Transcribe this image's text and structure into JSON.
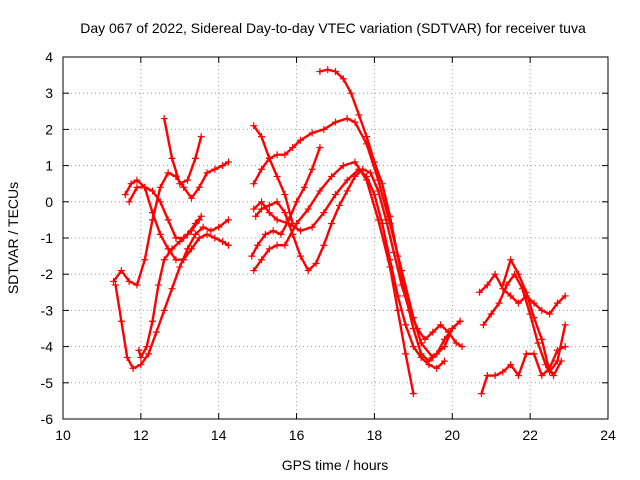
{
  "chart_data": {
    "type": "scatter",
    "title": "Day 067 of 2022, Sidereal Day-to-day VTEC variation (SDTVAR) for receiver tuva",
    "xlabel": "GPS time / hours",
    "ylabel": "SDTVAR / TECUs",
    "xlim": [
      10,
      24
    ],
    "ylim": [
      -6,
      4
    ],
    "xticks": [
      10,
      12,
      14,
      16,
      18,
      20,
      22,
      24
    ],
    "yticks": [
      -6,
      -5,
      -4,
      -3,
      -2,
      -1,
      0,
      1,
      2,
      3,
      4
    ],
    "grid": true,
    "marker": "+",
    "color": "#ff0000",
    "series": [
      {
        "name": "s1",
        "x": [
          11.3,
          11.5,
          11.7,
          11.9,
          12.1,
          12.3,
          12.5,
          12.7,
          12.9,
          13.1,
          13.3,
          13.5,
          13.7,
          13.9,
          14.1,
          14.25
        ],
        "y": [
          -2.2,
          -1.9,
          -2.2,
          -2.3,
          -1.6,
          -0.5,
          0.4,
          0.8,
          0.7,
          0.4,
          0.1,
          0.4,
          0.8,
          0.9,
          1.0,
          1.1
        ]
      },
      {
        "name": "s2",
        "x": [
          11.35,
          11.5,
          11.65,
          11.8,
          12.0,
          12.2,
          12.4,
          12.6,
          12.8,
          13.0,
          13.2,
          13.4,
          13.6,
          13.8,
          14.0,
          14.25
        ],
        "y": [
          -2.3,
          -3.3,
          -4.3,
          -4.6,
          -4.5,
          -4.2,
          -3.6,
          -3.0,
          -2.4,
          -1.8,
          -1.3,
          -0.9,
          -0.7,
          -0.8,
          -0.7,
          -0.5
        ]
      },
      {
        "name": "s3",
        "x": [
          11.95,
          12.0,
          12.15,
          12.3,
          12.45,
          12.6,
          12.8,
          13.0,
          13.2,
          13.4,
          13.55
        ],
        "y": [
          -4.1,
          -4.3,
          -4.0,
          -3.3,
          -2.3,
          -1.6,
          -1.3,
          -1.1,
          -0.9,
          -0.6,
          -0.4
        ]
      },
      {
        "name": "s4",
        "x": [
          11.6,
          11.75,
          11.9,
          12.1,
          12.3,
          12.5,
          12.7,
          12.9,
          13.1,
          13.3,
          13.5,
          13.7,
          13.9,
          14.1,
          14.25
        ],
        "y": [
          0.2,
          0.5,
          0.6,
          0.4,
          -0.3,
          -0.9,
          -1.3,
          -1.6,
          -1.6,
          -1.3,
          -1.0,
          -0.9,
          -1.0,
          -1.1,
          -1.2
        ]
      },
      {
        "name": "s5",
        "x": [
          11.7,
          11.9,
          12.1,
          12.3,
          12.5,
          12.7,
          12.9,
          13.1,
          13.3,
          13.5
        ],
        "y": [
          0.0,
          0.4,
          0.4,
          0.3,
          0.0,
          -0.5,
          -1.0,
          -1.0,
          -0.8,
          -0.5
        ]
      },
      {
        "name": "s6",
        "x": [
          12.6,
          12.8,
          13.0,
          13.2,
          13.4,
          13.55
        ],
        "y": [
          2.3,
          1.2,
          0.5,
          0.6,
          1.2,
          1.8
        ]
      },
      {
        "name": "s7",
        "x": [
          14.85,
          15.0,
          15.2,
          15.4,
          15.6,
          15.8,
          16.0,
          16.2,
          16.4,
          16.6
        ],
        "y": [
          -1.5,
          -1.2,
          -0.9,
          -0.8,
          -0.9,
          -0.5,
          0.0,
          0.4,
          0.9,
          1.5
        ]
      },
      {
        "name": "s8",
        "x": [
          14.9,
          15.1,
          15.3,
          15.5,
          15.7,
          15.9,
          16.1,
          16.4,
          16.7,
          17.0,
          17.3,
          17.5,
          17.8,
          18.1,
          18.4,
          18.7,
          19.0,
          19.2,
          19.5,
          19.8,
          20.0,
          20.2
        ],
        "y": [
          0.5,
          0.9,
          1.2,
          1.3,
          1.3,
          1.5,
          1.7,
          1.9,
          2.0,
          2.2,
          2.3,
          2.2,
          1.6,
          0.6,
          -0.6,
          -1.9,
          -3.2,
          -3.9,
          -4.3,
          -4.0,
          -3.5,
          -3.3
        ]
      },
      {
        "name": "s9",
        "x": [
          14.9,
          15.1,
          15.3,
          15.5,
          15.7,
          16.0,
          16.3,
          16.6,
          16.9,
          17.2,
          17.5,
          17.8,
          18.1,
          18.4,
          18.6,
          18.8,
          19.0
        ],
        "y": [
          -1.9,
          -1.6,
          -1.3,
          -1.2,
          -1.2,
          -0.6,
          -0.2,
          0.3,
          0.7,
          1.0,
          1.1,
          0.6,
          -0.5,
          -1.8,
          -3.0,
          -4.2,
          -5.3
        ]
      },
      {
        "name": "s10",
        "x": [
          14.9,
          15.1,
          15.3,
          15.5,
          15.8,
          16.1,
          16.4,
          16.7,
          17.0,
          17.3,
          17.6,
          17.8,
          18.0,
          18.2,
          18.4,
          18.6,
          18.8,
          19.0,
          19.2,
          19.4,
          19.6,
          19.8
        ],
        "y": [
          -0.2,
          0.0,
          -0.3,
          -0.5,
          -0.6,
          -0.8,
          -0.7,
          -0.3,
          0.2,
          0.6,
          0.9,
          0.7,
          0.2,
          -0.6,
          -1.6,
          -2.6,
          -3.4,
          -4.0,
          -4.3,
          -4.5,
          -4.6,
          -4.4
        ]
      },
      {
        "name": "s11",
        "x": [
          14.95,
          15.1,
          15.3,
          15.5,
          15.7,
          15.9,
          16.1,
          16.3,
          16.5,
          16.7,
          16.9,
          17.1,
          17.3,
          17.5,
          17.7,
          17.9,
          18.1,
          18.3,
          18.5,
          18.7,
          18.9,
          19.1,
          19.3,
          19.5,
          19.7,
          19.9,
          20.1,
          20.25
        ],
        "y": [
          -0.4,
          -0.2,
          -0.1,
          0.0,
          -0.3,
          -0.9,
          -1.5,
          -1.9,
          -1.7,
          -1.2,
          -0.6,
          -0.1,
          0.3,
          0.7,
          0.9,
          0.8,
          0.3,
          -0.5,
          -1.4,
          -2.3,
          -3.0,
          -3.5,
          -3.8,
          -3.6,
          -3.4,
          -3.6,
          -3.9,
          -4.0
        ]
      },
      {
        "name": "s12",
        "x": [
          14.9,
          15.1,
          15.3,
          15.5,
          15.7,
          15.9
        ],
        "y": [
          2.1,
          1.8,
          1.2,
          0.7,
          0.2,
          -0.6
        ]
      },
      {
        "name": "s13",
        "x": [
          16.6,
          16.8,
          17.0,
          17.2,
          17.4,
          17.6,
          17.8,
          18.0,
          18.2,
          18.4,
          18.6,
          18.8,
          19.0,
          19.2,
          19.4,
          19.6,
          19.8,
          20.0,
          20.2
        ],
        "y": [
          3.6,
          3.65,
          3.6,
          3.4,
          3.0,
          2.4,
          1.8,
          1.1,
          0.5,
          -0.4,
          -1.5,
          -2.6,
          -3.5,
          -4.2,
          -4.4,
          -4.2,
          -3.8,
          -3.5,
          -3.3
        ]
      },
      {
        "name": "s14",
        "x": [
          20.7,
          20.9,
          21.1,
          21.3,
          21.5,
          21.7,
          21.9,
          22.1,
          22.3,
          22.5,
          22.7,
          22.9
        ],
        "y": [
          -2.5,
          -2.3,
          -2.0,
          -2.4,
          -2.6,
          -2.8,
          -2.6,
          -2.8,
          -3.0,
          -3.1,
          -2.8,
          -2.6
        ]
      },
      {
        "name": "s15",
        "x": [
          20.8,
          21.0,
          21.2,
          21.4,
          21.6,
          21.8,
          22.0,
          22.2,
          22.4,
          22.6,
          22.8
        ],
        "y": [
          -3.4,
          -3.1,
          -2.8,
          -2.3,
          -2.0,
          -2.4,
          -3.1,
          -3.9,
          -4.5,
          -4.8,
          -4.4
        ]
      },
      {
        "name": "s16",
        "x": [
          20.75,
          20.9,
          21.1,
          21.3,
          21.5,
          21.7,
          21.9,
          22.1,
          22.3,
          22.5,
          22.7,
          22.9
        ],
        "y": [
          -5.3,
          -4.8,
          -4.8,
          -4.7,
          -4.5,
          -4.8,
          -4.2,
          -4.2,
          -4.8,
          -4.6,
          -4.1,
          -4.0
        ]
      },
      {
        "name": "s17",
        "x": [
          21.3,
          21.5,
          21.7,
          21.9,
          22.1,
          22.3,
          22.5,
          22.7,
          22.9
        ],
        "y": [
          -2.3,
          -1.6,
          -2.0,
          -2.5,
          -3.2,
          -3.8,
          -4.7,
          -4.4,
          -3.4
        ]
      }
    ]
  }
}
